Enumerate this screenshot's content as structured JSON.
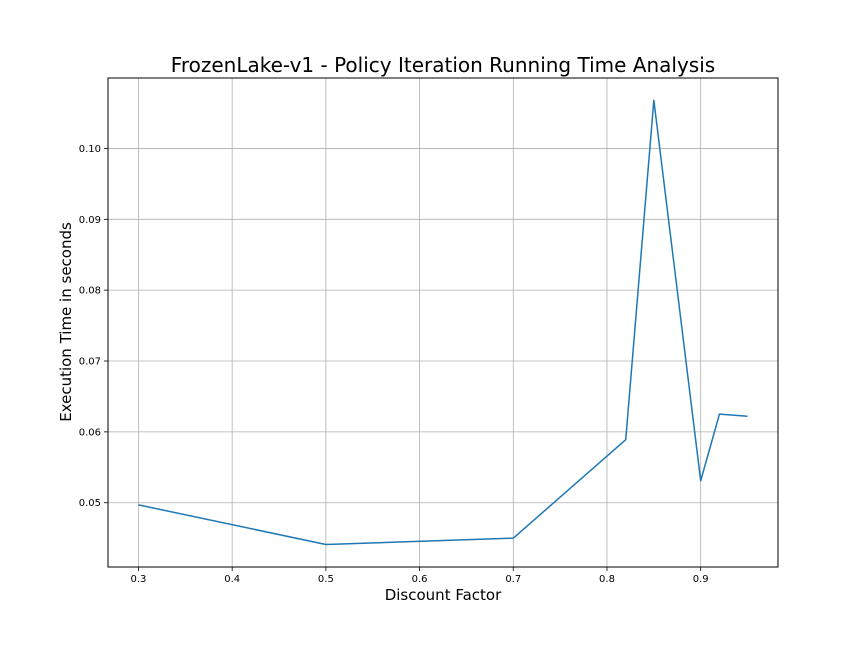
{
  "chart_data": {
    "type": "line",
    "title": "FrozenLake-v1 - Policy Iteration Running Time Analysis",
    "xlabel": "Discount Factor",
    "ylabel": "Execution Time in seconds",
    "x": [
      0.3,
      0.5,
      0.7,
      0.82,
      0.85,
      0.9,
      0.92,
      0.95
    ],
    "series": [
      {
        "values": [
          0.0497,
          0.0441,
          0.045,
          0.0589,
          0.1068,
          0.0531,
          0.0625,
          0.0622
        ],
        "color": "#1f77b4"
      }
    ],
    "xlim": [
      0.2675,
      0.9825
    ],
    "ylim": [
      0.04093,
      0.10994
    ],
    "xticks": [
      0.3,
      0.4,
      0.5,
      0.6,
      0.7,
      0.8,
      0.9
    ],
    "xtick_labels": [
      "0.3",
      "0.4",
      "0.5",
      "0.6",
      "0.7",
      "0.8",
      "0.9"
    ],
    "yticks": [
      0.05,
      0.06,
      0.07,
      0.08,
      0.09,
      0.1
    ],
    "ytick_labels": [
      "0.05",
      "0.06",
      "0.07",
      "0.08",
      "0.09",
      "0.10"
    ],
    "grid": true,
    "grid_color": "#b0b0b0",
    "legend": "none"
  }
}
